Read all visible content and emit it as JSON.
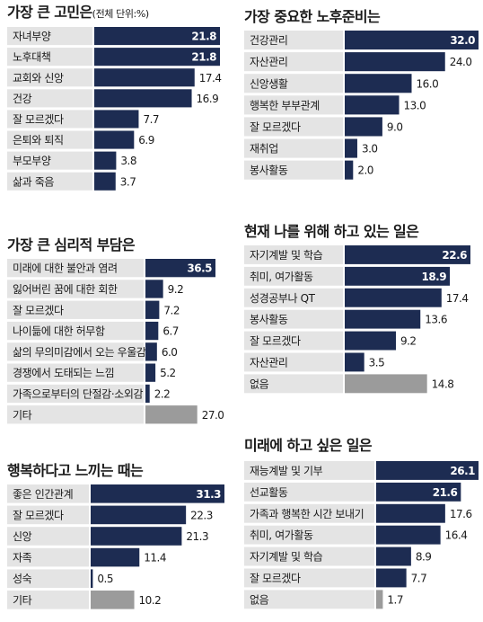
{
  "colors": {
    "bar": "#1d2c52",
    "bar_other": "#9b9b9b",
    "label_bg": "#e4e4e4",
    "value_inside": "#ffffff",
    "value_outside": "#1a1a1a"
  },
  "titles": {
    "p1_main": "가장 큰 고민은",
    "p1_sub": "(전체 단위:%)",
    "p2": "가장 중요한 노후준비는",
    "p3": "가장 큰 심리적 부담은",
    "p4": "현재 나를 위해 하고 있는 일은",
    "p5": "행복하다고 느끼는 때는",
    "p6": "미래에 하고 싶은 일은"
  },
  "chart_data": [
    {
      "type": "bar",
      "orientation": "horizontal",
      "title": "가장 큰 고민은",
      "subtitle": "(전체 단위:%)",
      "categories": [
        "자녀부양",
        "노후대책",
        "교회와 신앙",
        "건강",
        "잘 모르겠다",
        "은퇴와 퇴직",
        "부모부양",
        "삶과 죽음"
      ],
      "values": [
        21.8,
        21.8,
        17.4,
        16.9,
        7.7,
        6.9,
        3.8,
        3.7
      ],
      "labels": [
        "21.8",
        "21.8",
        "17.4",
        "16.9",
        "7.7",
        "6.9",
        "3.8",
        "3.7"
      ],
      "gray": []
    },
    {
      "type": "bar",
      "orientation": "horizontal",
      "title": "가장 중요한 노후준비는",
      "categories": [
        "건강관리",
        "자산관리",
        "신앙생활",
        "행복한 부부관계",
        "잘 모르겠다",
        "재취업",
        "봉사활동"
      ],
      "values": [
        32.0,
        24.0,
        16.0,
        13.0,
        9.0,
        3.0,
        2.0
      ],
      "labels": [
        "32.0",
        "24.0",
        "16.0",
        "13.0",
        "9.0",
        "3.0",
        "2.0"
      ],
      "gray": []
    },
    {
      "type": "bar",
      "orientation": "horizontal",
      "title": "가장 큰 심리적 부담은",
      "categories": [
        "미래에 대한 불안과 염려",
        "잃어버린 꿈에 대한 회한",
        "잘 모르겠다",
        "나이듦에 대한 허무함",
        "삶의 무의미감에서 오는 우울감",
        "경쟁에서 도태되는 느낌",
        "가족으로부터의 단절감·소외감",
        "기타"
      ],
      "values": [
        36.5,
        9.2,
        7.2,
        6.7,
        6.0,
        5.2,
        2.2,
        27.0
      ],
      "labels": [
        "36.5",
        "9.2",
        "7.2",
        "6.7",
        "6.0",
        "5.2",
        "2.2",
        "27.0"
      ],
      "gray": [
        "기타"
      ]
    },
    {
      "type": "bar",
      "orientation": "horizontal",
      "title": "현재 나를 위해 하고 있는 일은",
      "categories": [
        "자기계발 및 학습",
        "취미, 여가활동",
        "성경공부나 QT",
        "봉사활동",
        "잘 모르겠다",
        "자산관리",
        "없음"
      ],
      "values": [
        22.6,
        18.9,
        17.4,
        13.6,
        9.2,
        3.5,
        14.8
      ],
      "labels": [
        "22.6",
        "18.9",
        "17.4",
        "13.6",
        "9.2",
        "3.5",
        "14.8"
      ],
      "gray": [
        "없음"
      ]
    },
    {
      "type": "bar",
      "orientation": "horizontal",
      "title": "행복하다고 느끼는 때는",
      "categories": [
        "좋은 인간관계",
        "잘 모르겠다",
        "신앙",
        "자족",
        "성숙",
        "기타"
      ],
      "values": [
        31.3,
        22.3,
        21.3,
        11.4,
        0.5,
        10.2
      ],
      "labels": [
        "31.3",
        "22.3",
        "21.3",
        "11.4",
        "0.5",
        "10.2"
      ],
      "gray": [
        "기타"
      ]
    },
    {
      "type": "bar",
      "orientation": "horizontal",
      "title": "미래에 하고 싶은 일은",
      "categories": [
        "재능계발 및 기부",
        "선교활동",
        "가족과 행복한 시간 보내기",
        "취미, 여가활동",
        "자기계발 및 학습",
        "잘 모르겠다",
        "없음"
      ],
      "values": [
        26.1,
        21.6,
        17.6,
        16.4,
        8.9,
        7.7,
        1.7
      ],
      "labels": [
        "26.1",
        "21.6",
        "17.6",
        "16.4",
        "8.9",
        "7.7",
        "1.7"
      ],
      "gray": [
        "없음"
      ]
    }
  ]
}
